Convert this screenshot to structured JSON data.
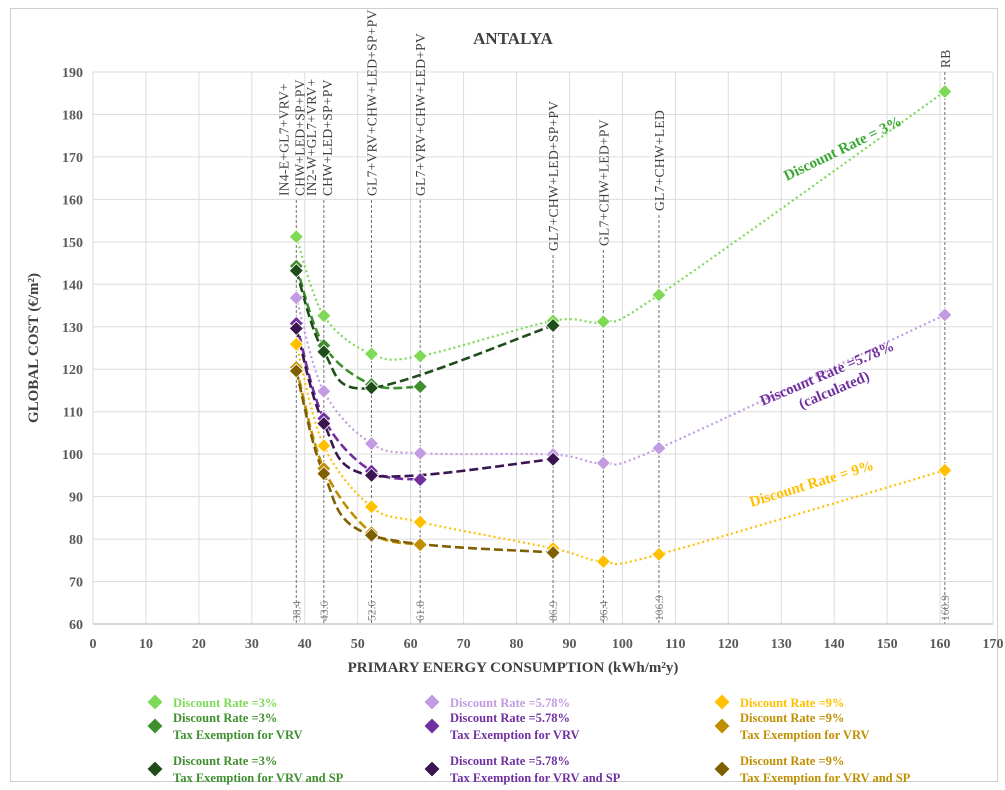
{
  "chart_data": {
    "type": "scatter",
    "title": "ANTALYA",
    "xlabel": "PRIMARY ENERGY CONSUMPTION (kWh/m²y)",
    "ylabel": "GLOBAL COST (€/m²)",
    "xlim": [
      0,
      170
    ],
    "ylim": [
      60,
      190
    ],
    "xticks": [
      0,
      10,
      20,
      30,
      40,
      50,
      60,
      70,
      80,
      90,
      100,
      110,
      120,
      130,
      140,
      150,
      160,
      170
    ],
    "yticks": [
      60,
      70,
      80,
      90,
      100,
      110,
      120,
      130,
      140,
      150,
      160,
      170,
      180,
      190
    ],
    "grid": true,
    "reference_lines": [
      {
        "x": 38.4,
        "label": "IN4-E+GL7+VRV+",
        "label2": "CHW+LED+SP+PV",
        "value_label": "38.4"
      },
      {
        "x": 43.6,
        "label": "IN2-W+GL7+VRV+",
        "label2": "CHW+LED+SP+PV",
        "value_label": "43.6"
      },
      {
        "x": 52.6,
        "label": "GL7+VRV+CHW+LED+SP+PV",
        "label2": "",
        "value_label": "52.6"
      },
      {
        "x": 61.8,
        "label": "GL7+VRV+CHW+LED+PV",
        "label2": "",
        "value_label": "61.8"
      },
      {
        "x": 86.9,
        "label": "GL7+CHW+LED+SP+PV",
        "label2": "",
        "value_label": "86.9"
      },
      {
        "x": 96.4,
        "label": "GL7+CHW+LED+PV",
        "label2": "",
        "value_label": "96.4"
      },
      {
        "x": 106.9,
        "label": "GL7+CHW+LED",
        "label2": "",
        "value_label": "106.9"
      },
      {
        "x": 160.9,
        "label": "RB",
        "label2": "",
        "value_label": "160.9"
      }
    ],
    "series": [
      {
        "name": "Discount Rate =3%",
        "name2": "",
        "color": "#7ed957",
        "x": [
          38.4,
          43.6,
          52.6,
          61.8,
          86.9,
          96.4,
          106.9,
          160.9
        ],
        "y": [
          151.2,
          132.6,
          123.6,
          123.1,
          131.4,
          131.2,
          137.5,
          185.4
        ]
      },
      {
        "name": "Discount Rate =3%",
        "name2": "Tax Exemption for VRV",
        "color": "#3f8f2f",
        "x": [
          38.4,
          43.6,
          52.6,
          61.8
        ],
        "y": [
          144.3,
          125.6,
          116.4,
          115.9
        ]
      },
      {
        "name": "Discount Rate =3%",
        "name2": "Tax Exemption for VRV and SP",
        "color": "#1f4d1a",
        "x": [
          38.4,
          43.6,
          52.6,
          86.9
        ],
        "y": [
          143.2,
          124.1,
          115.6,
          130.3
        ]
      },
      {
        "name": "Discount Rate =5.78%",
        "name2": "",
        "color": "#c39be0",
        "x": [
          38.4,
          43.6,
          52.6,
          61.8,
          86.9,
          96.4,
          106.9,
          160.9
        ],
        "y": [
          136.8,
          114.8,
          102.5,
          100.2,
          99.9,
          97.9,
          101.4,
          132.8
        ]
      },
      {
        "name": "Discount Rate =5.78%",
        "name2": "Tax Exemption for VRV",
        "color": "#7030a0",
        "x": [
          38.4,
          43.6,
          52.6,
          61.8
        ],
        "y": [
          130.8,
          108.4,
          96.0,
          94.0
        ]
      },
      {
        "name": "Discount Rate =5.78%",
        "name2": "Tax Exemption for VRV and SP",
        "color": "#3a1552",
        "x": [
          38.4,
          43.6,
          52.6,
          86.9
        ],
        "y": [
          129.6,
          107.2,
          95.0,
          98.8
        ]
      },
      {
        "name": "Discount Rate =9%",
        "name2": "",
        "color": "#ffc000",
        "x": [
          38.4,
          43.6,
          52.6,
          61.8,
          86.9,
          96.4,
          106.9,
          160.9
        ],
        "y": [
          125.9,
          102.0,
          87.6,
          84.0,
          77.8,
          74.7,
          76.4,
          96.2
        ]
      },
      {
        "name": "Discount Rate =9%",
        "name2": "Tax Exemption for VRV",
        "color": "#bf8f00",
        "x": [
          38.4,
          43.6,
          52.6,
          61.8
        ],
        "y": [
          120.4,
          96.6,
          81.5,
          78.7
        ]
      },
      {
        "name": "Discount Rate =9%",
        "name2": "Tax Exemption for VRV and SP",
        "color": "#7f6000",
        "x": [
          38.4,
          43.6,
          52.6,
          86.9
        ],
        "y": [
          119.6,
          95.4,
          80.9,
          76.8
        ]
      }
    ],
    "annotations": [
      {
        "text": "Discount Rate = 3%",
        "text2": "",
        "color": "#3aa832",
        "x": 142,
        "y": 171
      },
      {
        "text": "Discount Rate =5.78%",
        "text2": "(calculated)",
        "color": "#7030a0",
        "x": 139,
        "y": 118
      },
      {
        "text": "Discount Rate = 9%",
        "text2": "",
        "color": "#ffc000",
        "x": 136,
        "y": 92
      }
    ],
    "legend_position": "bottom"
  }
}
